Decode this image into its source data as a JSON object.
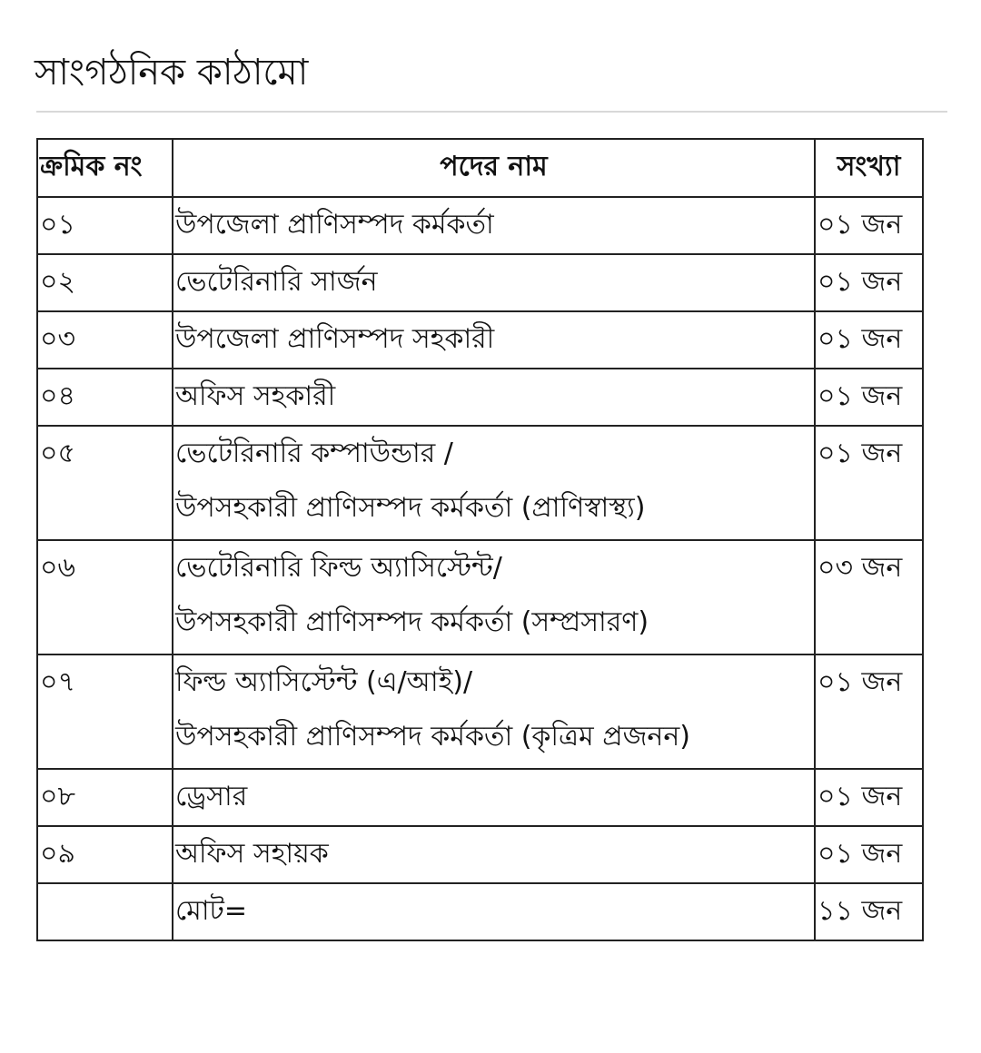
{
  "title": "সাংগঠনিক কাঠামো",
  "table": {
    "headers": [
      "ক্রমিক নং",
      "পদের নাম",
      "সংখ্যা"
    ],
    "rows": [
      {
        "serial": "০১",
        "lines": [
          "উপজেলা প্রাণিসম্পদ কর্মকর্তা"
        ],
        "count": "০১ জন"
      },
      {
        "serial": "০২",
        "lines": [
          "ভেটেরিনারি সার্জন"
        ],
        "count": "০১ জন"
      },
      {
        "serial": "০৩",
        "lines": [
          "উপজেলা প্রাণিসম্পদ সহকারী"
        ],
        "count": "০১ জন"
      },
      {
        "serial": "০৪",
        "lines": [
          "অফিস সহকারী"
        ],
        "count": "০১ জন"
      },
      {
        "serial": "০৫",
        "lines": [
          "ভেটেরিনারি কম্পাউন্ডার /",
          "উপসহকারী প্রাণিসম্পদ কর্মকর্তা (প্রাণিস্বাস্থ্য)"
        ],
        "count": "০১ জন"
      },
      {
        "serial": "০৬",
        "lines": [
          "ভেটেরিনারি ফিল্ড অ্যাসিস্টেন্ট/",
          "উপসহকারী প্রাণিসম্পদ কর্মকর্তা (সম্প্রসারণ)"
        ],
        "count": "০৩ জন"
      },
      {
        "serial": "০৭",
        "lines": [
          "ফিল্ড অ্যাসিস্টেন্ট (এ/আই)/",
          "উপসহকারী প্রাণিসম্পদ কর্মকর্তা (কৃত্রিম প্রজনন)"
        ],
        "count": "০১ জন"
      },
      {
        "serial": "০৮",
        "lines": [
          "ড্রেসার"
        ],
        "count": "০১ জন"
      },
      {
        "serial": "০৯",
        "lines": [
          "অফিস সহায়ক"
        ],
        "count": "০১ জন"
      }
    ],
    "total": {
      "label": "মোট=",
      "count": "১১ জন"
    }
  }
}
